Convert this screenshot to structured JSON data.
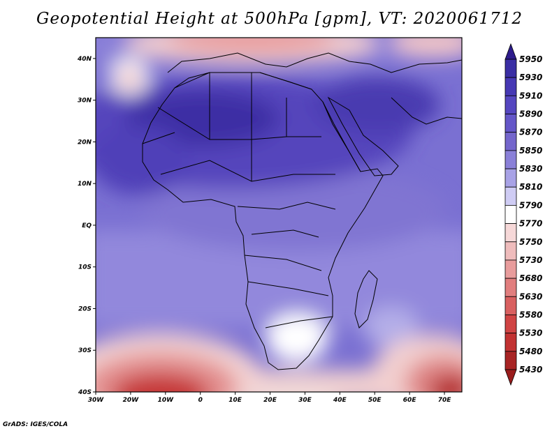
{
  "title": "Geopotential Height at 500hPa [gpm], VT: 2020061712",
  "credit": "GrADS: IGES/COLA",
  "map": {
    "lon_range": [
      -30,
      75
    ],
    "lat_range": [
      -40,
      45
    ],
    "lon_ticks": [
      {
        "value": -30,
        "label": "30W"
      },
      {
        "value": -20,
        "label": "20W"
      },
      {
        "value": -10,
        "label": "10W"
      },
      {
        "value": 0,
        "label": "0"
      },
      {
        "value": 10,
        "label": "10E"
      },
      {
        "value": 20,
        "label": "20E"
      },
      {
        "value": 30,
        "label": "30E"
      },
      {
        "value": 40,
        "label": "40E"
      },
      {
        "value": 50,
        "label": "50E"
      },
      {
        "value": 60,
        "label": "60E"
      },
      {
        "value": 70,
        "label": "70E"
      }
    ],
    "lat_ticks": [
      {
        "value": 40,
        "label": "40N"
      },
      {
        "value": 30,
        "label": "30N"
      },
      {
        "value": 20,
        "label": "20N"
      },
      {
        "value": 10,
        "label": "10N"
      },
      {
        "value": 0,
        "label": "EQ"
      },
      {
        "value": -10,
        "label": "10S"
      },
      {
        "value": -20,
        "label": "20S"
      },
      {
        "value": -30,
        "label": "30S"
      },
      {
        "value": -40,
        "label": "40S"
      }
    ]
  },
  "colorbar": {
    "levels": [
      5950,
      5930,
      5910,
      5890,
      5870,
      5850,
      5830,
      5810,
      5790,
      5770,
      5750,
      5730,
      5680,
      5630,
      5580,
      5530,
      5480,
      5430
    ],
    "colors": [
      "#2e1c8c",
      "#3a2ea4",
      "#4638b4",
      "#5546c0",
      "#6456c8",
      "#7466cc",
      "#8a80d8",
      "#a8a2e6",
      "#cfccf4",
      "#ffffff",
      "#f6d8d8",
      "#efbcbc",
      "#e89c9c",
      "#e17e7e",
      "#d96060",
      "#d04444",
      "#c23232",
      "#a82424",
      "#9a1c1c"
    ]
  }
}
